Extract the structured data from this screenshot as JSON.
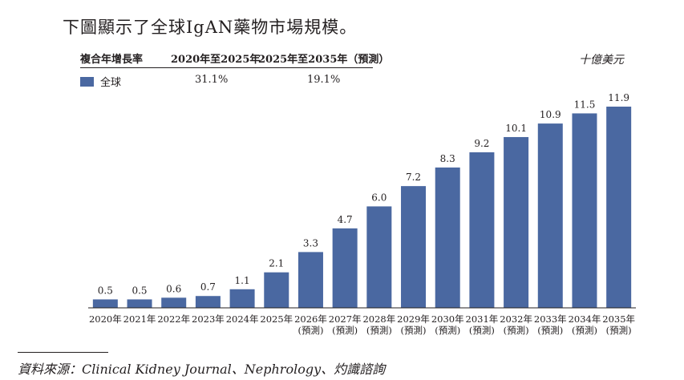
{
  "heading": "下圖顯示了全球IgAN藥物市場規模。",
  "cagr_table": {
    "headers": [
      "複合年增長率",
      "2020年至2025年",
      "2025年至2035年（預測）"
    ],
    "row_label": "全球",
    "values": [
      "31.1%",
      "19.1%"
    ]
  },
  "unit_label": "十億美元",
  "source": "資料來源：Clinical Kidney Journal、Nephrology、灼識諮詢",
  "colors": {
    "bar": "#4a68a1",
    "text": "#231f20"
  },
  "chart_data": {
    "type": "bar",
    "categories": [
      [
        "2020年"
      ],
      [
        "2021年"
      ],
      [
        "2022年"
      ],
      [
        "2023年"
      ],
      [
        "2024年"
      ],
      [
        "2025年"
      ],
      [
        "2026年",
        "(預測)"
      ],
      [
        "2027年",
        "(預測)"
      ],
      [
        "2028年",
        "(預測)"
      ],
      [
        "2029年",
        "(預測)"
      ],
      [
        "2030年",
        "(預測)"
      ],
      [
        "2031年",
        "(預測)"
      ],
      [
        "2032年",
        "(預測)"
      ],
      [
        "2033年",
        "(預測)"
      ],
      [
        "2034年",
        "(預測)"
      ],
      [
        "2035年",
        "(預測)"
      ]
    ],
    "series": [
      {
        "name": "全球",
        "values": [
          0.5,
          0.5,
          0.6,
          0.7,
          1.1,
          2.1,
          3.3,
          4.7,
          6.0,
          7.2,
          8.3,
          9.2,
          10.1,
          10.9,
          11.5,
          11.9
        ]
      }
    ],
    "value_labels": [
      "0.5",
      "0.5",
      "0.6",
      "0.7",
      "1.1",
      "2.1",
      "3.3",
      "4.7",
      "6.0",
      "7.2",
      "8.3",
      "9.2",
      "10.1",
      "10.9",
      "11.5",
      "11.9"
    ],
    "ylabel": "十億美元",
    "ylim": [
      0,
      11.9
    ],
    "grid": false,
    "legend": "top-left"
  }
}
